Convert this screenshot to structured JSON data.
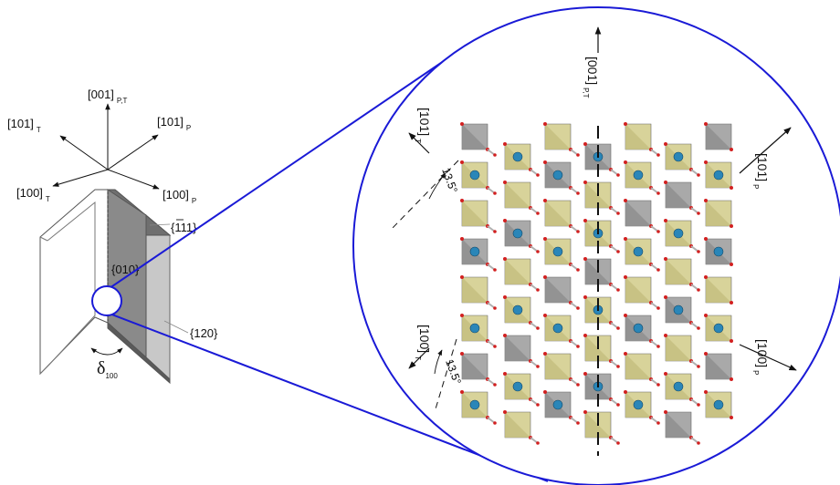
{
  "crystal": {
    "axis_001_pt": {
      "main": "[001]",
      "sub": "P,T"
    },
    "axis_101_t": {
      "main": "[101]",
      "sub": "T"
    },
    "axis_101_p": {
      "main": "[101]",
      "sub": "P"
    },
    "axis_100_t": {
      "main": "[100]",
      "sub": "T"
    },
    "axis_100_p": {
      "main": "[100]",
      "sub": "P"
    },
    "face_111": "{111}",
    "face_010": "{010}",
    "face_120": "{120}",
    "angle_symbol": "δ",
    "angle_sub": "100"
  },
  "zoom": {
    "axis_001_pt": {
      "main": "[001]",
      "sub": "P,T"
    },
    "axis_101_t": {
      "main": "[101]",
      "sub": "T"
    },
    "axis_101_p": {
      "main": "[101]",
      "sub": "P"
    },
    "axis_100_t": {
      "main": "[100]",
      "sub": "T"
    },
    "axis_100_p": {
      "main": "[100]",
      "sub": "P"
    },
    "angle_top": "13.5°",
    "angle_bottom": "13.5°"
  },
  "colors": {
    "outline_blue": "#1a1ad6",
    "octa_yellow": "#d8d39a",
    "octa_gray": "#a9a9a9",
    "sphere_blue": "#2a86b8",
    "oxygen_red": "#d22020"
  }
}
